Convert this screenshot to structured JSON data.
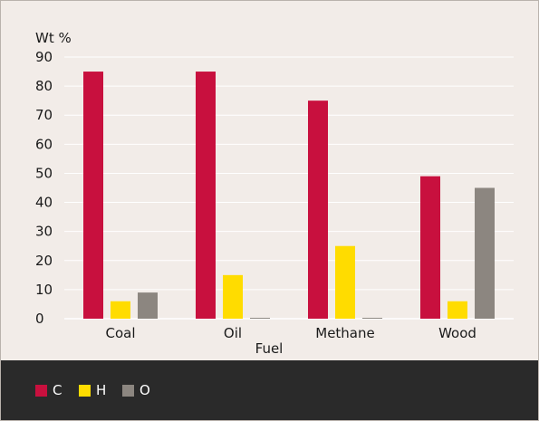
{
  "chart_data": {
    "type": "bar",
    "ylabel": "Wt %",
    "xlabel": "Fuel",
    "ylim": [
      0,
      90
    ],
    "yticks": [
      0,
      10,
      20,
      30,
      40,
      50,
      60,
      70,
      80,
      90
    ],
    "grid": true,
    "categories": [
      "Coal",
      "Oil",
      "Methane",
      "Wood"
    ],
    "series": [
      {
        "name": "C",
        "color": "#c8103e",
        "values": [
          85,
          85,
          75,
          49
        ]
      },
      {
        "name": "H",
        "color": "#ffdc00",
        "values": [
          6,
          15,
          25,
          6
        ]
      },
      {
        "name": "O",
        "color": "#8c8680",
        "values": [
          9,
          0.3,
          0.3,
          45
        ]
      }
    ],
    "legend_placement": "bottom"
  }
}
